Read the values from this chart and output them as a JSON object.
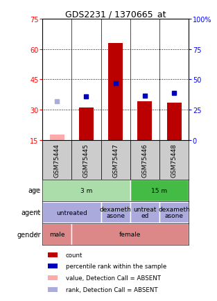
{
  "title": "GDS2231 / 1370665_at",
  "samples": [
    "GSM75444",
    "GSM75445",
    "GSM75447",
    "GSM75446",
    "GSM75448"
  ],
  "count_values": [
    17.5,
    31.0,
    63.0,
    34.0,
    33.5
  ],
  "count_absent": [
    true,
    false,
    false,
    false,
    false
  ],
  "percentile_values": [
    null,
    36.0,
    46.5,
    36.5,
    38.5
  ],
  "percentile_absent": [
    32.0,
    null,
    null,
    null,
    null
  ],
  "ylim_left": [
    15,
    75
  ],
  "ylim_right": [
    0,
    100
  ],
  "yticks_left": [
    15,
    30,
    45,
    60,
    75
  ],
  "ytick_labels_left": [
    "15",
    "30",
    "45",
    "60",
    "75"
  ],
  "yticks_right": [
    0,
    25,
    50,
    75,
    100
  ],
  "ytick_labels_right": [
    "0",
    "25",
    "50",
    "75",
    "100%"
  ],
  "bar_color": "#bb0000",
  "bar_absent_color": "#ffaaaa",
  "dot_color": "#0000bb",
  "dot_absent_color": "#aaaadd",
  "age_groups": [
    {
      "label": "3 m",
      "start": 0,
      "end": 3,
      "color": "#aaddaa"
    },
    {
      "label": "15 m",
      "start": 3,
      "end": 5,
      "color": "#44bb44"
    }
  ],
  "agent_groups": [
    {
      "label": "untreated",
      "start": 0,
      "end": 2,
      "color": "#aaaadd"
    },
    {
      "label": "dexameth\nasone",
      "start": 2,
      "end": 3,
      "color": "#aaaadd"
    },
    {
      "label": "untreat\ned",
      "start": 3,
      "end": 4,
      "color": "#aaaadd"
    },
    {
      "label": "dexameth\nasone",
      "start": 4,
      "end": 5,
      "color": "#aaaadd"
    }
  ],
  "gender_groups": [
    {
      "label": "male",
      "start": 0,
      "end": 1,
      "color": "#dd8888"
    },
    {
      "label": "female",
      "start": 1,
      "end": 5,
      "color": "#dd8888"
    }
  ],
  "legend_items": [
    {
      "color": "#bb0000",
      "label": "count"
    },
    {
      "color": "#0000bb",
      "label": "percentile rank within the sample"
    },
    {
      "color": "#ffaaaa",
      "label": "value, Detection Call = ABSENT"
    },
    {
      "color": "#aaaadd",
      "label": "rank, Detection Call = ABSENT"
    }
  ]
}
